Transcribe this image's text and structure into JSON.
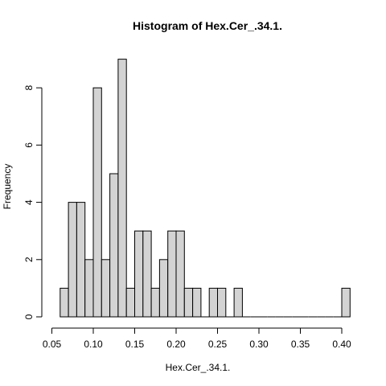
{
  "chart_data": {
    "type": "bar",
    "title": "Histogram of Hex.Cer_.34.1.",
    "xlabel": "Hex.Cer_.34.1.",
    "ylabel": "Frequency",
    "bin_width": 0.01,
    "bins": [
      {
        "start": 0.06,
        "end": 0.07,
        "count": 1
      },
      {
        "start": 0.07,
        "end": 0.08,
        "count": 4
      },
      {
        "start": 0.08,
        "end": 0.09,
        "count": 4
      },
      {
        "start": 0.09,
        "end": 0.1,
        "count": 2
      },
      {
        "start": 0.1,
        "end": 0.11,
        "count": 8
      },
      {
        "start": 0.11,
        "end": 0.12,
        "count": 2
      },
      {
        "start": 0.12,
        "end": 0.13,
        "count": 5
      },
      {
        "start": 0.13,
        "end": 0.14,
        "count": 9
      },
      {
        "start": 0.14,
        "end": 0.15,
        "count": 1
      },
      {
        "start": 0.15,
        "end": 0.16,
        "count": 3
      },
      {
        "start": 0.16,
        "end": 0.17,
        "count": 3
      },
      {
        "start": 0.17,
        "end": 0.18,
        "count": 1
      },
      {
        "start": 0.18,
        "end": 0.19,
        "count": 2
      },
      {
        "start": 0.19,
        "end": 0.2,
        "count": 3
      },
      {
        "start": 0.2,
        "end": 0.21,
        "count": 3
      },
      {
        "start": 0.21,
        "end": 0.22,
        "count": 1
      },
      {
        "start": 0.22,
        "end": 0.23,
        "count": 1
      },
      {
        "start": 0.23,
        "end": 0.24,
        "count": 0
      },
      {
        "start": 0.24,
        "end": 0.25,
        "count": 1
      },
      {
        "start": 0.25,
        "end": 0.26,
        "count": 1
      },
      {
        "start": 0.26,
        "end": 0.27,
        "count": 0
      },
      {
        "start": 0.27,
        "end": 0.28,
        "count": 1
      },
      {
        "start": 0.28,
        "end": 0.29,
        "count": 0
      },
      {
        "start": 0.29,
        "end": 0.3,
        "count": 0
      },
      {
        "start": 0.3,
        "end": 0.31,
        "count": 0
      },
      {
        "start": 0.31,
        "end": 0.32,
        "count": 0
      },
      {
        "start": 0.32,
        "end": 0.33,
        "count": 0
      },
      {
        "start": 0.33,
        "end": 0.34,
        "count": 0
      },
      {
        "start": 0.34,
        "end": 0.35,
        "count": 0
      },
      {
        "start": 0.35,
        "end": 0.36,
        "count": 0
      },
      {
        "start": 0.36,
        "end": 0.37,
        "count": 0
      },
      {
        "start": 0.37,
        "end": 0.38,
        "count": 0
      },
      {
        "start": 0.38,
        "end": 0.39,
        "count": 0
      },
      {
        "start": 0.39,
        "end": 0.4,
        "count": 0
      },
      {
        "start": 0.4,
        "end": 0.41,
        "count": 1
      }
    ],
    "x_ticks": [
      "0.05",
      "0.10",
      "0.15",
      "0.20",
      "0.25",
      "0.30",
      "0.35",
      "0.40"
    ],
    "y_ticks": [
      "0",
      "2",
      "4",
      "6",
      "8"
    ],
    "xlim": [
      0.05,
      0.41
    ],
    "ylim": [
      0,
      9
    ],
    "bar_color": "#d3d3d3",
    "grid": false,
    "legend": "none"
  }
}
